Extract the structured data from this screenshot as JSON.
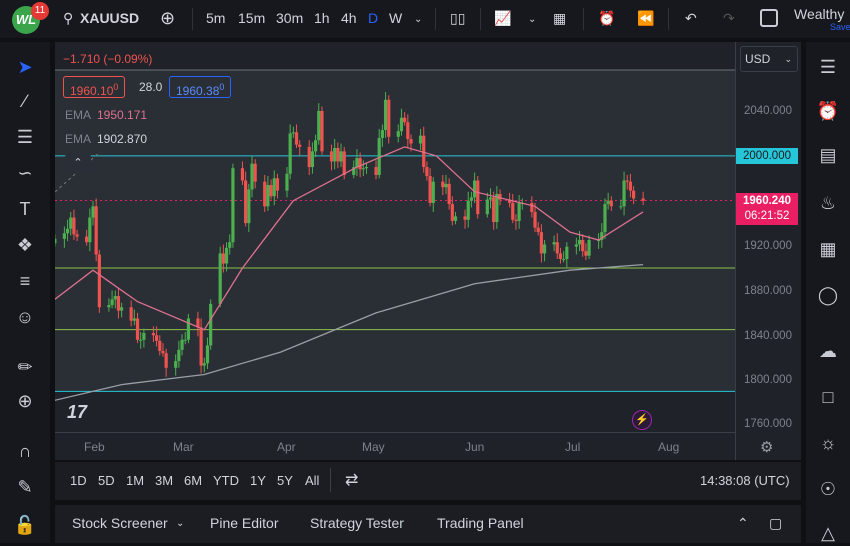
{
  "topbar": {
    "logo": "WL",
    "notifications": "11",
    "symbol": "XAUUSD",
    "intervals": [
      "5m",
      "15m",
      "30m",
      "1h",
      "4h",
      "D",
      "W"
    ],
    "active_interval": "D",
    "account": "Wealthy",
    "account_sub": "Save"
  },
  "legend": {
    "change": "−1.710 (−0.09%)",
    "bid": "1960.10",
    "bid_sup": "0",
    "spread": "28.0",
    "ask": "1960.38",
    "ask_sup": "0",
    "ema1_label": "EMA",
    "ema1_value": "1950.171",
    "ema2_label": "EMA",
    "ema2_value": "1902.870"
  },
  "currency": "USD",
  "price_axis": {
    "ticks": [
      "2040.000",
      "2000.000",
      "1960.240",
      "1920.000",
      "1880.000",
      "1840.000",
      "1800.000",
      "1760.000"
    ],
    "level_label": "2000.000",
    "last_price": "1960.240",
    "countdown": "06:21:52"
  },
  "time_axis": [
    "Feb",
    "Mar",
    "Apr",
    "May",
    "Jun",
    "Jul",
    "Aug"
  ],
  "range_bar": {
    "ranges": [
      "1D",
      "5D",
      "1M",
      "3M",
      "6M",
      "YTD",
      "1Y",
      "5Y",
      "All"
    ],
    "clock": "14:38:08 (UTC)"
  },
  "bottom_panel": [
    "Stock Screener",
    "Pine Editor",
    "Strategy Tester",
    "Trading Panel"
  ],
  "colors": {
    "up": "#4caf50",
    "down": "#ef5350",
    "ema_fast": "#e0708f",
    "ema_slow": "#9a9ea6",
    "level_cyan": "#26c6da",
    "level_green": "#8bc34a",
    "last_price": "#e91e63"
  },
  "chart_data": {
    "type": "candlestick",
    "symbol": "XAUUSD",
    "interval": "D",
    "ylim": [
      1750,
      2080
    ],
    "x_start": "2023-01-20",
    "closes": [
      1926,
      1931,
      1935,
      1945,
      1930,
      1928,
      1923,
      1945,
      1955,
      1912,
      1865,
      1867,
      1872,
      1875,
      1862,
      1865,
      1853,
      1855,
      1836,
      1836,
      1842,
      1840,
      1835,
      1826,
      1824,
      1811,
      1817,
      1827,
      1836,
      1836,
      1855,
      1847,
      1813,
      1815,
      1831,
      1868,
      1913,
      1904,
      1918,
      1923,
      1989,
      1978,
      1940,
      1970,
      1993,
      1977,
      1955,
      1974,
      1964,
      1980,
      1969,
      1984,
      2020,
      2021,
      2010,
      2008,
      1990,
      2004,
      2014,
      2040,
      2004,
      1995,
      2007,
      1995,
      2004,
      1983,
      1990,
      1998,
      1988,
      1989,
      1990,
      1983,
      2016,
      2023,
      2050,
      2017,
      2022,
      2034,
      2030,
      2015,
      2011,
      2018,
      1990,
      1982,
      1958,
      1977,
      1972,
      1975,
      1957,
      1942,
      1946,
      1943,
      1960,
      1963,
      1978,
      1948,
      1961,
      1963,
      1941,
      1966,
      1961,
      1958,
      1943,
      1942,
      1958,
      1958,
      1950,
      1936,
      1932,
      1913,
      1921,
      1923,
      1913,
      1908,
      1908,
      1919,
      1921,
      1925,
      1915,
      1911,
      1925,
      1925,
      1932,
      1957,
      1960,
      1955,
      1955,
      1978,
      1977,
      1969,
      1962,
      1960
    ],
    "ema_fast": [
      [
        "2023-01-20",
        1872
      ],
      [
        "2023-02-01",
        1898
      ],
      [
        "2023-02-15",
        1870
      ],
      [
        "2023-03-08",
        1845
      ],
      [
        "2023-03-20",
        1900
      ],
      [
        "2023-04-05",
        1960
      ],
      [
        "2023-04-25",
        1990
      ],
      [
        "2023-05-10",
        2008
      ],
      [
        "2023-05-20",
        2000
      ],
      [
        "2023-06-01",
        1968
      ],
      [
        "2023-06-20",
        1955
      ],
      [
        "2023-07-01",
        1932
      ],
      [
        "2023-07-10",
        1925
      ],
      [
        "2023-07-24",
        1950
      ]
    ],
    "ema_slow": [
      [
        "2023-01-20",
        1782
      ],
      [
        "2023-02-10",
        1796
      ],
      [
        "2023-03-08",
        1805
      ],
      [
        "2023-04-01",
        1825
      ],
      [
        "2023-05-01",
        1860
      ],
      [
        "2023-06-01",
        1886
      ],
      [
        "2023-07-01",
        1898
      ],
      [
        "2023-07-24",
        1903
      ]
    ],
    "levels": {
      "cyan": [
        2000,
        1790
      ],
      "green": [
        1900,
        1845
      ]
    }
  }
}
